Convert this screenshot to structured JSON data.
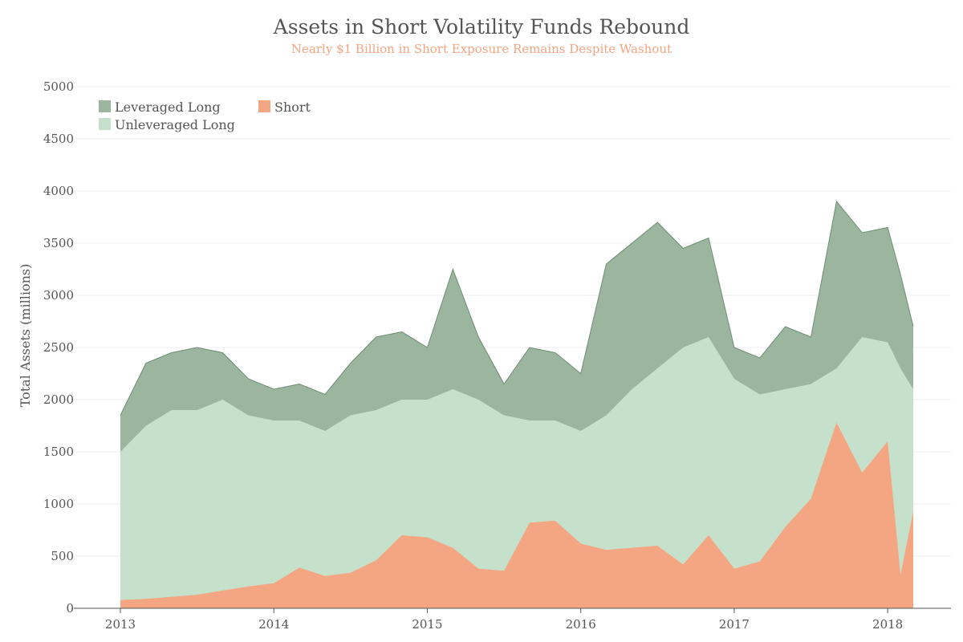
{
  "chart_data": {
    "type": "area",
    "title": "Assets in Short Volatility Funds Rebound",
    "subtitle": "Nearly $1 Billion in Short Exposure Remains Despite Washout",
    "xlabel": "",
    "ylabel": "Total Assets (millions)",
    "ylim": [
      0,
      5000
    ],
    "yticks": [
      "0",
      "500",
      "1000",
      "1500",
      "2000",
      "2500",
      "3000",
      "3500",
      "4000",
      "4500",
      "5000"
    ],
    "xticks": [
      "2013",
      "2014",
      "2015",
      "2016",
      "2017",
      "2018"
    ],
    "grid": true,
    "legend_position": "top-left",
    "colors": {
      "leveraged_long_fill": "#9bb59e",
      "leveraged_long_line": "#6e8f72",
      "unleveraged_long": "#c5e1cb",
      "short": "#f4a582"
    },
    "x": [
      "2013-01",
      "2013-03",
      "2013-05",
      "2013-07",
      "2013-09",
      "2013-11",
      "2014-01",
      "2014-03",
      "2014-05",
      "2014-07",
      "2014-09",
      "2014-11",
      "2015-01",
      "2015-03",
      "2015-05",
      "2015-07",
      "2015-09",
      "2015-11",
      "2016-01",
      "2016-03",
      "2016-05",
      "2016-07",
      "2016-09",
      "2016-11",
      "2017-01",
      "2017-03",
      "2017-05",
      "2017-07",
      "2017-09",
      "2017-11",
      "2018-01",
      "2018-02",
      "2018-03"
    ],
    "series": [
      {
        "name": "Short",
        "values": [
          80,
          90,
          110,
          130,
          170,
          210,
          240,
          390,
          310,
          340,
          460,
          700,
          680,
          580,
          380,
          360,
          820,
          840,
          620,
          560,
          580,
          600,
          420,
          700,
          380,
          450,
          780,
          1050,
          1780,
          1300,
          1600,
          320,
          930
        ]
      },
      {
        "name": "Unleveraged Long",
        "values": [
          1500,
          1750,
          1900,
          1900,
          2000,
          1850,
          1800,
          1800,
          1700,
          1850,
          1900,
          2000,
          2000,
          2100,
          2000,
          1850,
          1800,
          1800,
          1700,
          1850,
          2100,
          2300,
          2500,
          2600,
          2200,
          2050,
          2100,
          2150,
          2300,
          2600,
          2550,
          2300,
          2100
        ]
      },
      {
        "name": "Leveraged Long",
        "values": [
          1850,
          2350,
          2450,
          2500,
          2450,
          2200,
          2100,
          2150,
          2050,
          2350,
          2600,
          2650,
          2500,
          3250,
          2600,
          2150,
          2500,
          2450,
          2250,
          3300,
          3500,
          3700,
          3450,
          3550,
          2500,
          2400,
          2700,
          2600,
          3900,
          3600,
          3650,
          3200,
          2700
        ]
      }
    ]
  }
}
